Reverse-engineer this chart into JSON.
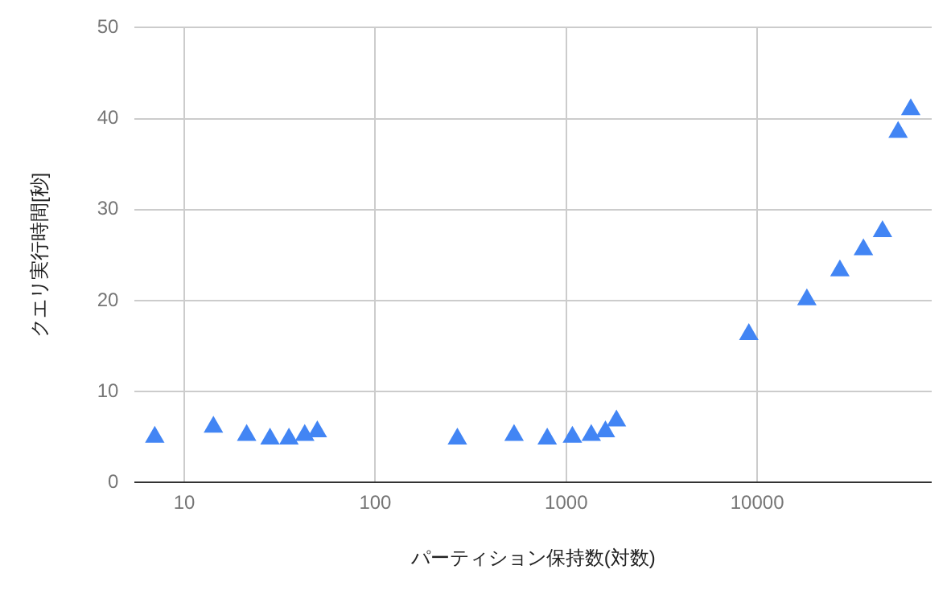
{
  "chart_data": {
    "type": "scatter",
    "xlabel": "パーティション保持数(対数)",
    "ylabel": "クエリ実行時間[秒]",
    "log": "x",
    "grid": true,
    "legend": false,
    "marker": "triangle",
    "xlim": [
      5.5,
      82000
    ],
    "xticks": [
      10,
      100,
      1000,
      10000
    ],
    "ylim": [
      0,
      50
    ],
    "yticks": [
      0,
      10,
      20,
      30,
      40,
      50
    ],
    "series": [
      {
        "color": "#4285f4",
        "x": [
          7.0,
          14.2,
          21.2,
          28.1,
          35.3,
          42.7,
          49.7,
          269,
          533,
          795,
          1077,
          1352,
          1604,
          1832,
          9040,
          18200,
          27100,
          36000,
          45300,
          54700,
          63700
        ],
        "values": [
          5.0,
          6.1,
          5.2,
          4.8,
          4.8,
          5.2,
          5.6,
          4.8,
          5.2,
          4.8,
          5.0,
          5.2,
          5.6,
          6.8,
          16.3,
          20.1,
          23.3,
          25.6,
          27.6,
          38.5,
          41.0
        ]
      }
    ]
  }
}
